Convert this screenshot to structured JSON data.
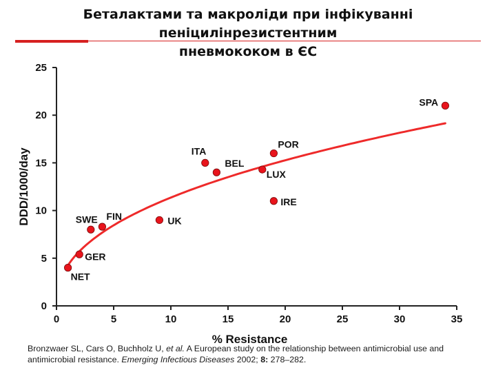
{
  "title_line1": "Беталактами та макроліди при інфікуванні пеніцилінрезистентним",
  "title_line2": "пневмококом в ЄС",
  "colors": {
    "accent": "#d62020",
    "point": "#e8141c",
    "trend": "#ee2a2a",
    "axis": "#222222"
  },
  "chart_data": {
    "type": "scatter",
    "xlabel": "% Resistance",
    "ylabel": "DDD/1000/day",
    "xlim": [
      0,
      35
    ],
    "ylim": [
      0,
      25
    ],
    "x_ticks": [
      "0",
      "5",
      "10",
      "15",
      "20",
      "25",
      "30",
      "35"
    ],
    "y_ticks": [
      "0",
      "5",
      "10",
      "15",
      "20",
      "25"
    ],
    "grid": false,
    "points": [
      {
        "label": "NET",
        "x": 1,
        "y": 4
      },
      {
        "label": "GER",
        "x": 2,
        "y": 5.4
      },
      {
        "label": "SWE",
        "x": 3,
        "y": 8
      },
      {
        "label": "FIN",
        "x": 4,
        "y": 8.3
      },
      {
        "label": "UK",
        "x": 9,
        "y": 9
      },
      {
        "label": "ITA",
        "x": 13,
        "y": 15
      },
      {
        "label": "BEL",
        "x": 14,
        "y": 14
      },
      {
        "label": "LUX",
        "x": 18,
        "y": 14.3
      },
      {
        "label": "POR",
        "x": 19,
        "y": 16
      },
      {
        "label": "IRE",
        "x": 19,
        "y": 11
      },
      {
        "label": "SPA",
        "x": 34,
        "y": 21
      }
    ],
    "trendline": {
      "type": "power",
      "x_start": 1,
      "x_end": 34
    }
  },
  "citation": {
    "authors": "Bronzwaer SL, Cars O, Buchholz U, ",
    "etal": "et al.",
    "text": " A European study on the relationship between antimicrobial use and antimicrobial resistance. ",
    "journal": "Emerging Infectious Diseases",
    "year": " 2002; ",
    "volume": "8:",
    "pages": " 278–282."
  }
}
